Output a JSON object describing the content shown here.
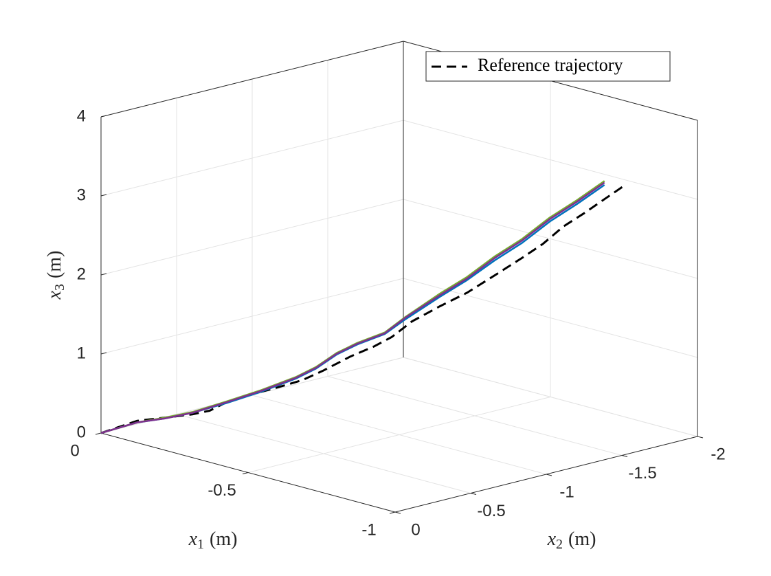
{
  "chart_data": {
    "type": "line3d",
    "xlabel": {
      "symbol": "x",
      "subscript": "1",
      "unit": "(m)"
    },
    "ylabel": {
      "symbol": "x",
      "subscript": "2",
      "unit": "(m)"
    },
    "zlabel": {
      "symbol": "x",
      "subscript": "3",
      "unit": "(m)"
    },
    "xlim": [
      0,
      -1
    ],
    "xticks": [
      0,
      -0.5,
      -1
    ],
    "ylim": [
      0,
      -2
    ],
    "yticks": [
      0,
      -0.5,
      -1,
      -1.5,
      -2
    ],
    "zlim": [
      0,
      4
    ],
    "zticks": [
      0,
      1,
      2,
      3,
      4
    ],
    "grid": true,
    "legend": "northeast",
    "series": [
      {
        "name": "Reference trajectory",
        "color": "#000000",
        "dashed": true,
        "x1": [
          0,
          -0.052,
          -0.092,
          -0.131,
          -0.156,
          -0.18,
          -0.21,
          -0.25,
          -0.289,
          -0.318,
          -0.358,
          -0.392,
          -0.417,
          -0.446,
          -0.486,
          -0.525,
          -0.565,
          -0.604,
          -0.634,
          -0.663,
          -0.693,
          -0.722,
          -0.75
        ],
        "x2": [
          0,
          -0.139,
          -0.244,
          -0.35,
          -0.415,
          -0.48,
          -0.56,
          -0.665,
          -0.77,
          -0.849,
          -0.954,
          -1.046,
          -1.112,
          -1.19,
          -1.296,
          -1.4,
          -1.506,
          -1.611,
          -1.69,
          -1.769,
          -1.847,
          -1.926,
          -2
        ],
        "x3": [
          0,
          0.14,
          0.17,
          0.2,
          0.24,
          0.34,
          0.42,
          0.5,
          0.59,
          0.7,
          0.87,
          0.99,
          1.1,
          1.29,
          1.47,
          1.63,
          1.84,
          2.05,
          2.22,
          2.43,
          2.59,
          2.76,
          2.92
        ]
      },
      {
        "color": "#0072bd",
        "x1": [
          0,
          -0.052,
          -0.092,
          -0.131,
          -0.18,
          -0.23,
          -0.279,
          -0.308,
          -0.338,
          -0.368,
          -0.407,
          -0.437,
          -0.486,
          -0.525,
          -0.565,
          -0.604,
          -0.644,
          -0.683,
          -0.722
        ],
        "x2": [
          0,
          -0.139,
          -0.244,
          -0.35,
          -0.48,
          -0.612,
          -0.744,
          -0.823,
          -0.901,
          -0.98,
          -1.085,
          -1.164,
          -1.296,
          -1.4,
          -1.506,
          -1.611,
          -1.716,
          -1.821,
          -1.926
        ],
        "x3": [
          0,
          0.12,
          0.16,
          0.22,
          0.33,
          0.46,
          0.61,
          0.73,
          0.9,
          1.02,
          1.14,
          1.32,
          1.59,
          1.79,
          2.03,
          2.24,
          2.5,
          2.71,
          2.94
        ]
      },
      {
        "color": "#77ac30",
        "x1": [
          0,
          -0.052,
          -0.092,
          -0.131,
          -0.18,
          -0.23,
          -0.279,
          -0.308,
          -0.338,
          -0.368,
          -0.407,
          -0.437,
          -0.486,
          -0.525,
          -0.565,
          -0.604,
          -0.644,
          -0.683,
          -0.722
        ],
        "x2": [
          0,
          -0.139,
          -0.244,
          -0.35,
          -0.48,
          -0.612,
          -0.744,
          -0.823,
          -0.901,
          -0.98,
          -1.085,
          -1.164,
          -1.296,
          -1.4,
          -1.506,
          -1.611,
          -1.716,
          -1.821,
          -1.926
        ],
        "x3": [
          0,
          0.12,
          0.17,
          0.23,
          0.35,
          0.48,
          0.63,
          0.75,
          0.92,
          1.04,
          1.16,
          1.35,
          1.63,
          1.83,
          2.08,
          2.29,
          2.55,
          2.76,
          2.99
        ]
      },
      {
        "color": "#7e2f8e",
        "x1": [
          0,
          -0.052,
          -0.092,
          -0.131,
          -0.18,
          -0.23,
          -0.279,
          -0.308,
          -0.338,
          -0.368,
          -0.407,
          -0.437,
          -0.486,
          -0.525,
          -0.565,
          -0.604,
          -0.644,
          -0.683,
          -0.722
        ],
        "x2": [
          0,
          -0.139,
          -0.244,
          -0.35,
          -0.48,
          -0.612,
          -0.744,
          -0.823,
          -0.901,
          -0.98,
          -1.085,
          -1.164,
          -1.296,
          -1.4,
          -1.506,
          -1.611,
          -1.716,
          -1.821,
          -1.926
        ],
        "x3": [
          0,
          0.12,
          0.16,
          0.22,
          0.34,
          0.47,
          0.62,
          0.74,
          0.91,
          1.03,
          1.15,
          1.34,
          1.61,
          1.81,
          2.06,
          2.27,
          2.53,
          2.74,
          2.97
        ]
      }
    ]
  }
}
